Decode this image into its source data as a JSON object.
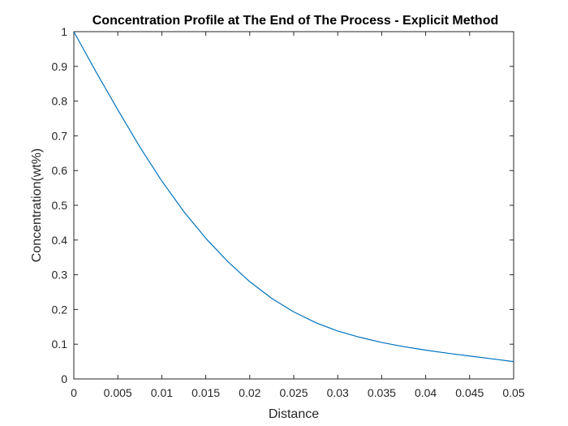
{
  "chart_data": {
    "type": "line",
    "title": "Concentration Profile at The End of The Process - Explicit Method",
    "xlabel": "Distance",
    "ylabel": "Concentration(wt%)",
    "xlim": [
      0,
      0.05
    ],
    "ylim": [
      0,
      1
    ],
    "x_ticks": [
      "0",
      "0.005",
      "0.01",
      "0.015",
      "0.02",
      "0.025",
      "0.03",
      "0.035",
      "0.04",
      "0.045",
      "0.05"
    ],
    "y_ticks": [
      "0",
      "0.1",
      "0.2",
      "0.3",
      "0.4",
      "0.5",
      "0.6",
      "0.7",
      "0.8",
      "0.9",
      "1"
    ],
    "grid": false,
    "colors": {
      "line": "#0072BD",
      "axes": "#262626"
    },
    "series": [
      {
        "x": [
          0,
          0.0025,
          0.005,
          0.0075,
          0.01,
          0.0125,
          0.015,
          0.0175,
          0.02,
          0.0225,
          0.025,
          0.0275,
          0.03,
          0.0325,
          0.035,
          0.0375,
          0.04,
          0.0425,
          0.045,
          0.0475,
          0.05
        ],
        "values": [
          1.0,
          0.885,
          0.775,
          0.668,
          0.57,
          0.482,
          0.405,
          0.338,
          0.28,
          0.232,
          0.193,
          0.162,
          0.138,
          0.12,
          0.105,
          0.093,
          0.083,
          0.074,
          0.066,
          0.058,
          0.05
        ]
      }
    ]
  }
}
